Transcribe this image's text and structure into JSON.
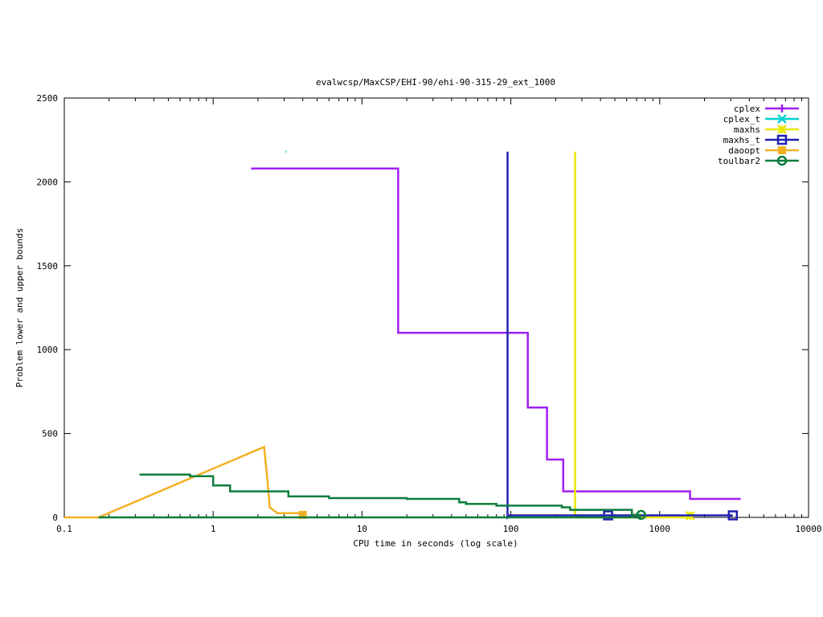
{
  "chart_data": {
    "type": "line",
    "title": "evalwcsp/MaxCSP/EHI-90/ehi-90-315-29_ext_1000",
    "xlabel": "CPU time in seconds (log scale)",
    "ylabel": "Problem lower and upper bounds",
    "x_scale": "log",
    "xlim": [
      0.1,
      10000
    ],
    "ylim": [
      0,
      2500
    ],
    "x_ticks": [
      0.1,
      1,
      10,
      100,
      1000,
      10000
    ],
    "x_tick_labels": [
      "0.1",
      "1",
      "10",
      "100",
      "1000",
      "10000"
    ],
    "y_ticks": [
      0,
      500,
      1000,
      1500,
      2000,
      2500
    ],
    "y_tick_labels": [
      "0",
      "500",
      "1000",
      "1500",
      "2000",
      "2500"
    ],
    "legend_position": "top-right",
    "grid": false,
    "series": [
      {
        "name": "cplex",
        "color": "#a020f0",
        "marker": "plus",
        "points": [
          [
            1.8,
            2080
          ],
          [
            17.5,
            2080
          ],
          [
            17.5,
            1100
          ],
          [
            130,
            1100
          ],
          [
            130,
            655
          ],
          [
            175,
            655
          ],
          [
            175,
            345
          ],
          [
            225,
            345
          ],
          [
            225,
            155
          ],
          [
            1600,
            155
          ],
          [
            1600,
            110
          ],
          [
            3500,
            110
          ]
        ],
        "marker_points": []
      },
      {
        "name": "cplex_t",
        "color": "#00d0d0",
        "marker": "x",
        "points": [
          [
            3.05,
            2180
          ],
          [
            3.1,
            2180
          ]
        ],
        "marker_points": []
      },
      {
        "name": "maxhs",
        "color": "#e8e800",
        "marker": "star",
        "points": [
          [
            270,
            2180
          ],
          [
            270,
            0
          ],
          [
            1600,
            0
          ],
          [
            1650,
            0
          ]
        ],
        "marker_points": [
          [
            1600,
            10
          ]
        ]
      },
      {
        "name": "maxhs_t",
        "color": "#2020b0",
        "marker": "square",
        "points": [
          [
            95,
            2180
          ],
          [
            95,
            0
          ],
          [
            98,
            12
          ],
          [
            1650,
            12
          ],
          [
            3100,
            12
          ]
        ],
        "marker_points": [
          [
            450,
            12
          ],
          [
            3100,
            12
          ]
        ]
      },
      {
        "name": "daoopt",
        "color": "#f4b023",
        "marker": "filled-square",
        "points": [
          [
            0.1,
            0
          ],
          [
            0.17,
            0
          ],
          [
            2.2,
            420
          ],
          [
            2.3,
            250
          ],
          [
            2.4,
            60
          ],
          [
            2.7,
            25
          ],
          [
            4.0,
            25
          ]
        ],
        "marker_points": [
          [
            4.0,
            15
          ]
        ]
      },
      {
        "name": "toulbar2",
        "color": "#0e7d3c",
        "marker": "circle",
        "points": [
          [
            0.32,
            255
          ],
          [
            0.7,
            255
          ],
          [
            0.7,
            245
          ],
          [
            1.0,
            245
          ],
          [
            1.0,
            190
          ],
          [
            1.3,
            190
          ],
          [
            1.3,
            155
          ],
          [
            3.2,
            155
          ],
          [
            3.2,
            125
          ],
          [
            6,
            125
          ],
          [
            6,
            115
          ],
          [
            20,
            115
          ],
          [
            20,
            110
          ],
          [
            45,
            110
          ],
          [
            45,
            90
          ],
          [
            50,
            90
          ],
          [
            50,
            80
          ],
          [
            80,
            80
          ],
          [
            80,
            70
          ],
          [
            220,
            70
          ],
          [
            220,
            60
          ],
          [
            250,
            60
          ],
          [
            250,
            45
          ],
          [
            650,
            45
          ],
          [
            650,
            15
          ],
          [
            750,
            15
          ]
        ],
        "lower_bound": [
          [
            0.17,
            0
          ],
          [
            750,
            0
          ]
        ],
        "marker_points": [
          [
            750,
            15
          ]
        ]
      }
    ]
  }
}
